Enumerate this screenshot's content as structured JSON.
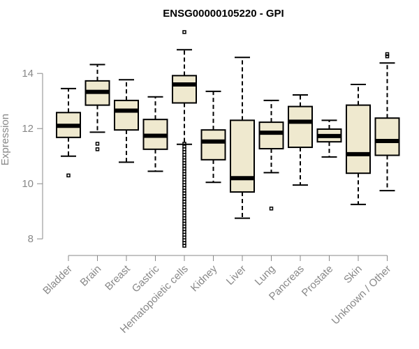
{
  "chart_data": {
    "type": "box",
    "title": "ENSG00000105220 - GPI",
    "xlabel": "",
    "ylabel": "Expression",
    "ylim": [
      7.6,
      15.6
    ],
    "yticks": [
      8,
      10,
      12,
      14
    ],
    "grid": false,
    "colors": {
      "box_fill": "#efe9cf",
      "axis": "#888888",
      "ink": "#000000"
    },
    "categories": [
      "Bladder",
      "Brain",
      "Breast",
      "Gastric",
      "Hematopoietic cells",
      "Kidney",
      "Liver",
      "Lung",
      "Pancreas",
      "Prostate",
      "Skin",
      "Unknown / Other"
    ],
    "boxes": [
      {
        "category": "Bladder",
        "whislo": 11.0,
        "q1": 11.68,
        "median": 12.1,
        "q3": 12.58,
        "whishi": 13.45,
        "outliers": [
          10.3
        ]
      },
      {
        "category": "Brain",
        "whislo": 11.87,
        "q1": 12.85,
        "median": 13.33,
        "q3": 13.73,
        "whishi": 14.32,
        "outliers": [
          11.45,
          11.25
        ]
      },
      {
        "category": "Breast",
        "whislo": 10.78,
        "q1": 11.95,
        "median": 12.65,
        "q3": 13.02,
        "whishi": 13.77,
        "outliers": []
      },
      {
        "category": "Gastric",
        "whislo": 10.45,
        "q1": 11.25,
        "median": 11.74,
        "q3": 12.33,
        "whishi": 13.15,
        "outliers": []
      },
      {
        "category": "Hematopoietic cells",
        "whislo": 11.43,
        "q1": 12.93,
        "median": 13.6,
        "q3": 13.92,
        "whishi": 14.86,
        "outliers": [
          15.5,
          11.45,
          11.35,
          11.25,
          11.15,
          11.05,
          10.95,
          10.85,
          10.75,
          10.65,
          10.55,
          10.45,
          10.35,
          10.25,
          10.15,
          10.05,
          9.95,
          9.85,
          9.75,
          9.65,
          9.55,
          9.45,
          9.35,
          9.25,
          9.15,
          9.05,
          8.95,
          8.85,
          8.75,
          8.65,
          8.55,
          8.45,
          8.35,
          8.25,
          8.15,
          8.05,
          7.95,
          7.85,
          7.75
        ]
      },
      {
        "category": "Kidney",
        "whislo": 10.05,
        "q1": 10.87,
        "median": 11.53,
        "q3": 11.95,
        "whishi": 13.35,
        "outliers": []
      },
      {
        "category": "Liver",
        "whislo": 8.75,
        "q1": 9.7,
        "median": 10.2,
        "q3": 12.3,
        "whishi": 14.58,
        "outliers": []
      },
      {
        "category": "Lung",
        "whislo": 10.4,
        "q1": 11.27,
        "median": 11.85,
        "q3": 12.23,
        "whishi": 13.02,
        "outliers": [
          9.1
        ]
      },
      {
        "category": "Pancreas",
        "whislo": 9.95,
        "q1": 11.32,
        "median": 12.25,
        "q3": 12.8,
        "whishi": 13.22,
        "outliers": []
      },
      {
        "category": "Prostate",
        "whislo": 10.97,
        "q1": 11.52,
        "median": 11.73,
        "q3": 11.98,
        "whishi": 12.3,
        "outliers": []
      },
      {
        "category": "Skin",
        "whislo": 9.25,
        "q1": 10.38,
        "median": 11.07,
        "q3": 12.85,
        "whishi": 13.6,
        "outliers": []
      },
      {
        "category": "Unknown / Other",
        "whislo": 9.75,
        "q1": 11.03,
        "median": 11.55,
        "q3": 12.38,
        "whishi": 14.38,
        "outliers": [
          14.62,
          14.7
        ]
      }
    ]
  }
}
